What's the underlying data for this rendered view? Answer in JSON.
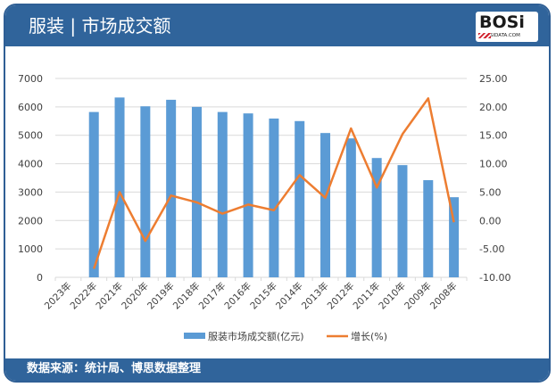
{
  "header": {
    "title": "服装 | 市场成交额",
    "logo_text": "BOSi",
    "logo_sub": "BOSIDATA.COM"
  },
  "footer": {
    "source": "数据来源：统计局、博思数据整理"
  },
  "legend": {
    "bar_label": "服装市场成交额(亿元)",
    "line_label": "增长(%)"
  },
  "colors": {
    "bar": "#5b9bd5",
    "line": "#ed7d31",
    "header": "#30649b",
    "grid": "#d9d9d9"
  },
  "chart_data": {
    "type": "bar+line",
    "title": "服装 | 市场成交额",
    "categories": [
      "2023年",
      "2022年",
      "2021年",
      "2020年",
      "2019年",
      "2018年",
      "2017年",
      "2016年",
      "2015年",
      "2014年",
      "2013年",
      "2012年",
      "2011年",
      "2010年",
      "2009年",
      "2008年"
    ],
    "series": [
      {
        "name": "服装市场成交额(亿元)",
        "type": "bar",
        "axis": "left",
        "values": [
          null,
          5820,
          6330,
          6020,
          6250,
          6000,
          5820,
          5770,
          5590,
          5500,
          5080,
          4890,
          4200,
          3950,
          3420,
          2820
        ]
      },
      {
        "name": "增长(%)",
        "type": "line",
        "axis": "right",
        "values": [
          null,
          -8.5,
          5.0,
          -3.6,
          4.4,
          3.2,
          1.2,
          2.8,
          1.8,
          8.0,
          4.0,
          16.2,
          5.8,
          15.2,
          21.5,
          -0.3
        ]
      }
    ],
    "y_left": {
      "ticks": [
        "0",
        "1000",
        "2000",
        "3000",
        "4000",
        "5000",
        "6000",
        "7000"
      ],
      "min": 0,
      "max": 7000
    },
    "y_right": {
      "ticks": [
        "-10.00",
        "-5.00",
        "0.00",
        "5.00",
        "10.00",
        "15.00",
        "20.00",
        "25.00"
      ],
      "min": -10,
      "max": 25
    },
    "grid": true,
    "legend_position": "bottom"
  }
}
